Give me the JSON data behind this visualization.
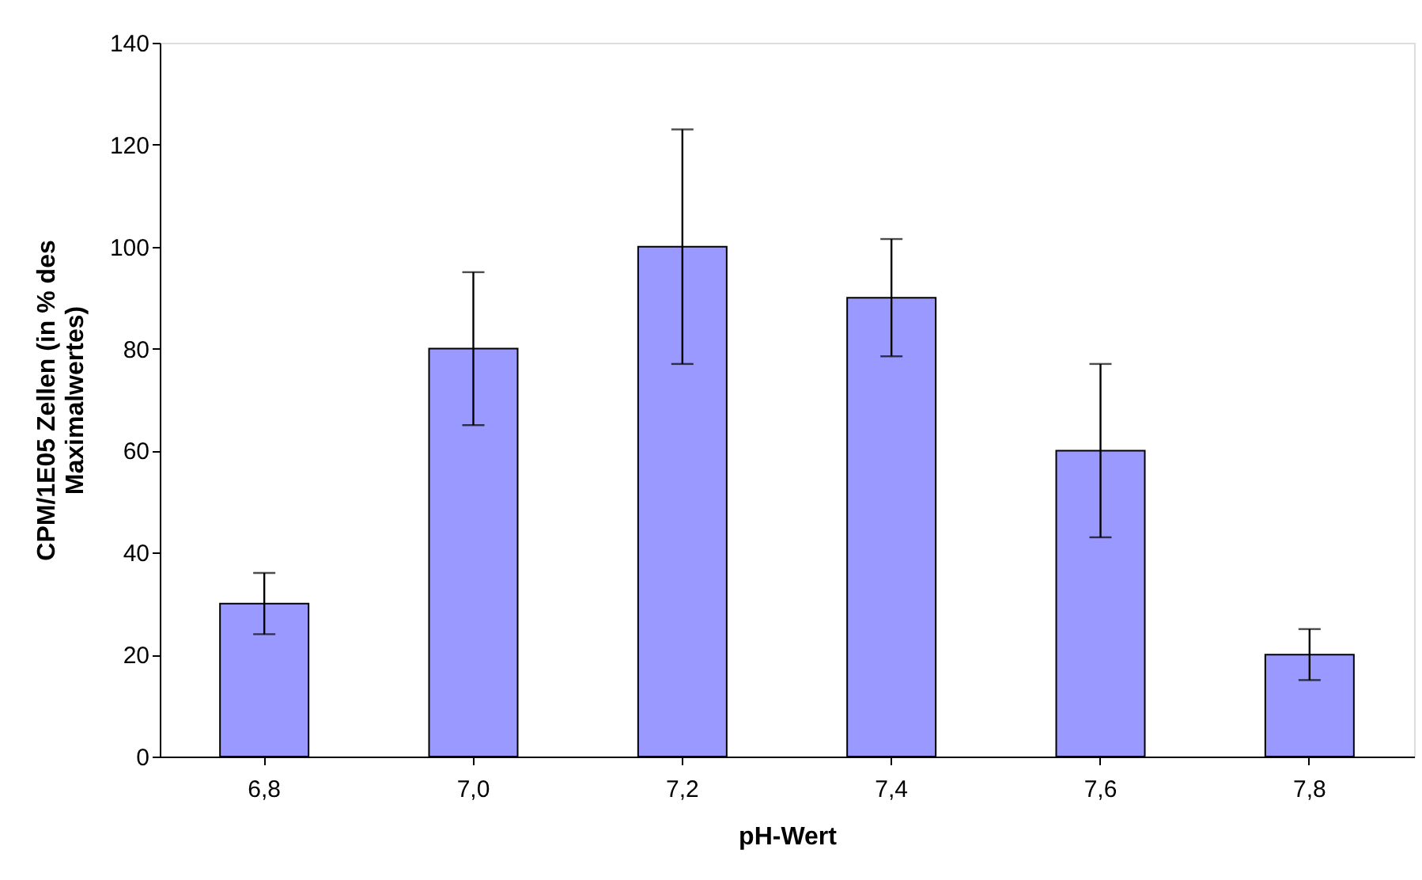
{
  "chart_data": {
    "type": "bar",
    "xlabel": "pH-Wert",
    "ylabel": "CPM/1E05 Zellen (in % des Maximalwertes)",
    "categories": [
      "6,8",
      "7,0",
      "7,2",
      "7,4",
      "7,6",
      "7,8"
    ],
    "values": [
      30,
      80,
      100,
      90,
      60,
      20
    ],
    "errors": [
      6,
      15,
      23,
      11.5,
      17,
      5
    ],
    "color": "#9999ff",
    "ylim": [
      0,
      140
    ],
    "yticks": [
      0,
      20,
      40,
      60,
      80,
      100,
      120,
      140
    ],
    "grid": false
  }
}
